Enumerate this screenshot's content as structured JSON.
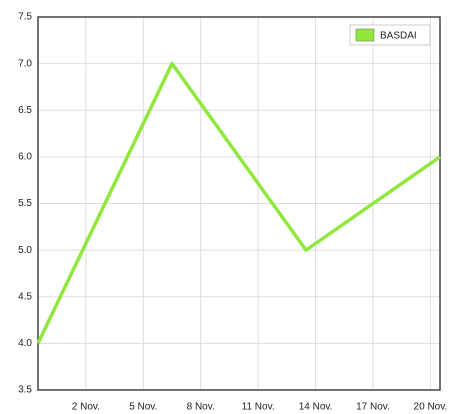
{
  "chart_data": {
    "type": "line",
    "x": [
      -0.5,
      6.5,
      13.5,
      20.5
    ],
    "series": [
      {
        "name": "BASDAI",
        "color": "#90e83c",
        "values": [
          4.0,
          7.0,
          5.0,
          6.0
        ]
      }
    ],
    "xlim": [
      -0.5,
      20.5
    ],
    "xticks": [
      {
        "value": 2,
        "label": "2 Nov."
      },
      {
        "value": 5,
        "label": "5 Nov."
      },
      {
        "value": 8,
        "label": "8 Nov."
      },
      {
        "value": 11,
        "label": "11 Nov."
      },
      {
        "value": 14,
        "label": "14 Nov."
      },
      {
        "value": 17,
        "label": "17 Nov."
      },
      {
        "value": 20,
        "label": "20 Nov."
      }
    ],
    "ylim": [
      3.5,
      7.5
    ],
    "yticks": [
      3.5,
      {
        "value": 4,
        "label": "4.0"
      },
      4.5,
      {
        "value": 5,
        "label": "5.0"
      },
      5.5,
      {
        "value": 6,
        "label": "6.0"
      },
      6.5,
      {
        "value": 7,
        "label": "7.0"
      },
      7.5
    ],
    "grid": true,
    "legend": "top-right"
  }
}
